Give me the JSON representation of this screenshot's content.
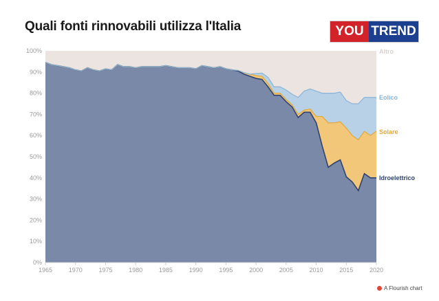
{
  "title": "Quali fonti rinnovabili utilizza l'Italia",
  "logo": {
    "left": "YOU",
    "right": "TREND"
  },
  "footer": {
    "text": "A Flourish chart"
  },
  "colors": {
    "idroelettrico": "#7a89a8",
    "idroelettrico_line": "#2e4270",
    "solare": "#f2c77a",
    "solare_line": "#e0a93a",
    "eolico": "#b8d1e6",
    "eolico_line": "#89b4d8",
    "altro": "#ece4e1"
  },
  "chart_data": {
    "type": "area",
    "stacked": true,
    "x": [
      1965,
      1966,
      1967,
      1968,
      1969,
      1970,
      1971,
      1972,
      1973,
      1974,
      1975,
      1976,
      1977,
      1978,
      1979,
      1980,
      1981,
      1982,
      1983,
      1984,
      1985,
      1986,
      1987,
      1988,
      1989,
      1990,
      1991,
      1992,
      1993,
      1994,
      1995,
      1996,
      1997,
      1998,
      1999,
      2000,
      2001,
      2002,
      2003,
      2004,
      2005,
      2006,
      2007,
      2008,
      2009,
      2010,
      2011,
      2012,
      2013,
      2014,
      2015,
      2016,
      2017,
      2018,
      2019,
      2020
    ],
    "series": [
      {
        "name": "Idroelettrico",
        "values": [
          94.5,
          93.5,
          93,
          92.5,
          92,
          91,
          90.5,
          92,
          91,
          90.5,
          91.5,
          91,
          93.5,
          92.5,
          92.5,
          92,
          92.5,
          92.5,
          92.5,
          92.5,
          93,
          92.5,
          92,
          92,
          92,
          91.5,
          93,
          92.5,
          92,
          92.5,
          91.5,
          91,
          90.5,
          89,
          88,
          87,
          86.5,
          83,
          79,
          79,
          76,
          73.5,
          68.5,
          71,
          71,
          66,
          55,
          45,
          47,
          48.5,
          40.5,
          38,
          34,
          42,
          40,
          40
        ]
      },
      {
        "name": "Solare",
        "values": [
          0,
          0,
          0,
          0,
          0,
          0,
          0,
          0,
          0,
          0,
          0,
          0,
          0,
          0,
          0,
          0,
          0,
          0,
          0,
          0,
          0,
          0,
          0,
          0,
          0,
          0,
          0,
          0,
          0,
          0,
          0,
          0,
          0.3,
          0.7,
          1,
          1.3,
          1.5,
          1.5,
          1,
          1,
          1,
          1,
          1.5,
          1,
          1.5,
          3,
          14,
          21,
          19,
          18,
          23,
          22,
          24,
          20,
          20,
          22
        ]
      },
      {
        "name": "Eolico",
        "values": [
          0,
          0,
          0,
          0,
          0,
          0,
          0,
          0,
          0,
          0,
          0,
          0,
          0,
          0,
          0,
          0,
          0,
          0,
          0,
          0,
          0,
          0,
          0,
          0,
          0,
          0,
          0,
          0,
          0,
          0,
          0,
          0,
          0,
          0,
          0,
          1,
          1.5,
          3,
          3,
          3,
          4.5,
          5,
          8,
          9,
          9.5,
          12,
          11,
          14,
          14,
          14,
          13,
          15,
          17,
          16,
          18,
          16
        ]
      },
      {
        "name": "Altro",
        "values": [
          5.5,
          6.5,
          7,
          7.5,
          8,
          9,
          9.5,
          8,
          9,
          9.5,
          8.5,
          9,
          6.5,
          7.5,
          7.5,
          8,
          7.5,
          7.5,
          7.5,
          7.5,
          7,
          7.5,
          8,
          8,
          8,
          8.5,
          7,
          7.5,
          8,
          7.5,
          8.5,
          9,
          9.2,
          10.3,
          11,
          10.7,
          10.5,
          12.5,
          17,
          17,
          18.5,
          20.5,
          22,
          19,
          18,
          19,
          20,
          20,
          20,
          19.5,
          23.5,
          25,
          25,
          22,
          22,
          22
        ]
      }
    ],
    "xlabel": "",
    "ylabel": "",
    "xlim": [
      1965,
      2020
    ],
    "ylim": [
      0,
      100
    ],
    "x_ticks": [
      1965,
      1970,
      1975,
      1980,
      1985,
      1990,
      1995,
      2000,
      2005,
      2010,
      2015,
      2020
    ],
    "y_ticks": [
      0,
      10,
      20,
      30,
      40,
      50,
      60,
      70,
      80,
      90,
      100
    ],
    "y_tick_suffix": "%",
    "grid": false,
    "legend": "inline-right",
    "end_labels": [
      "Altro",
      "Eolico",
      "Solare",
      "Idroelettrico"
    ]
  }
}
